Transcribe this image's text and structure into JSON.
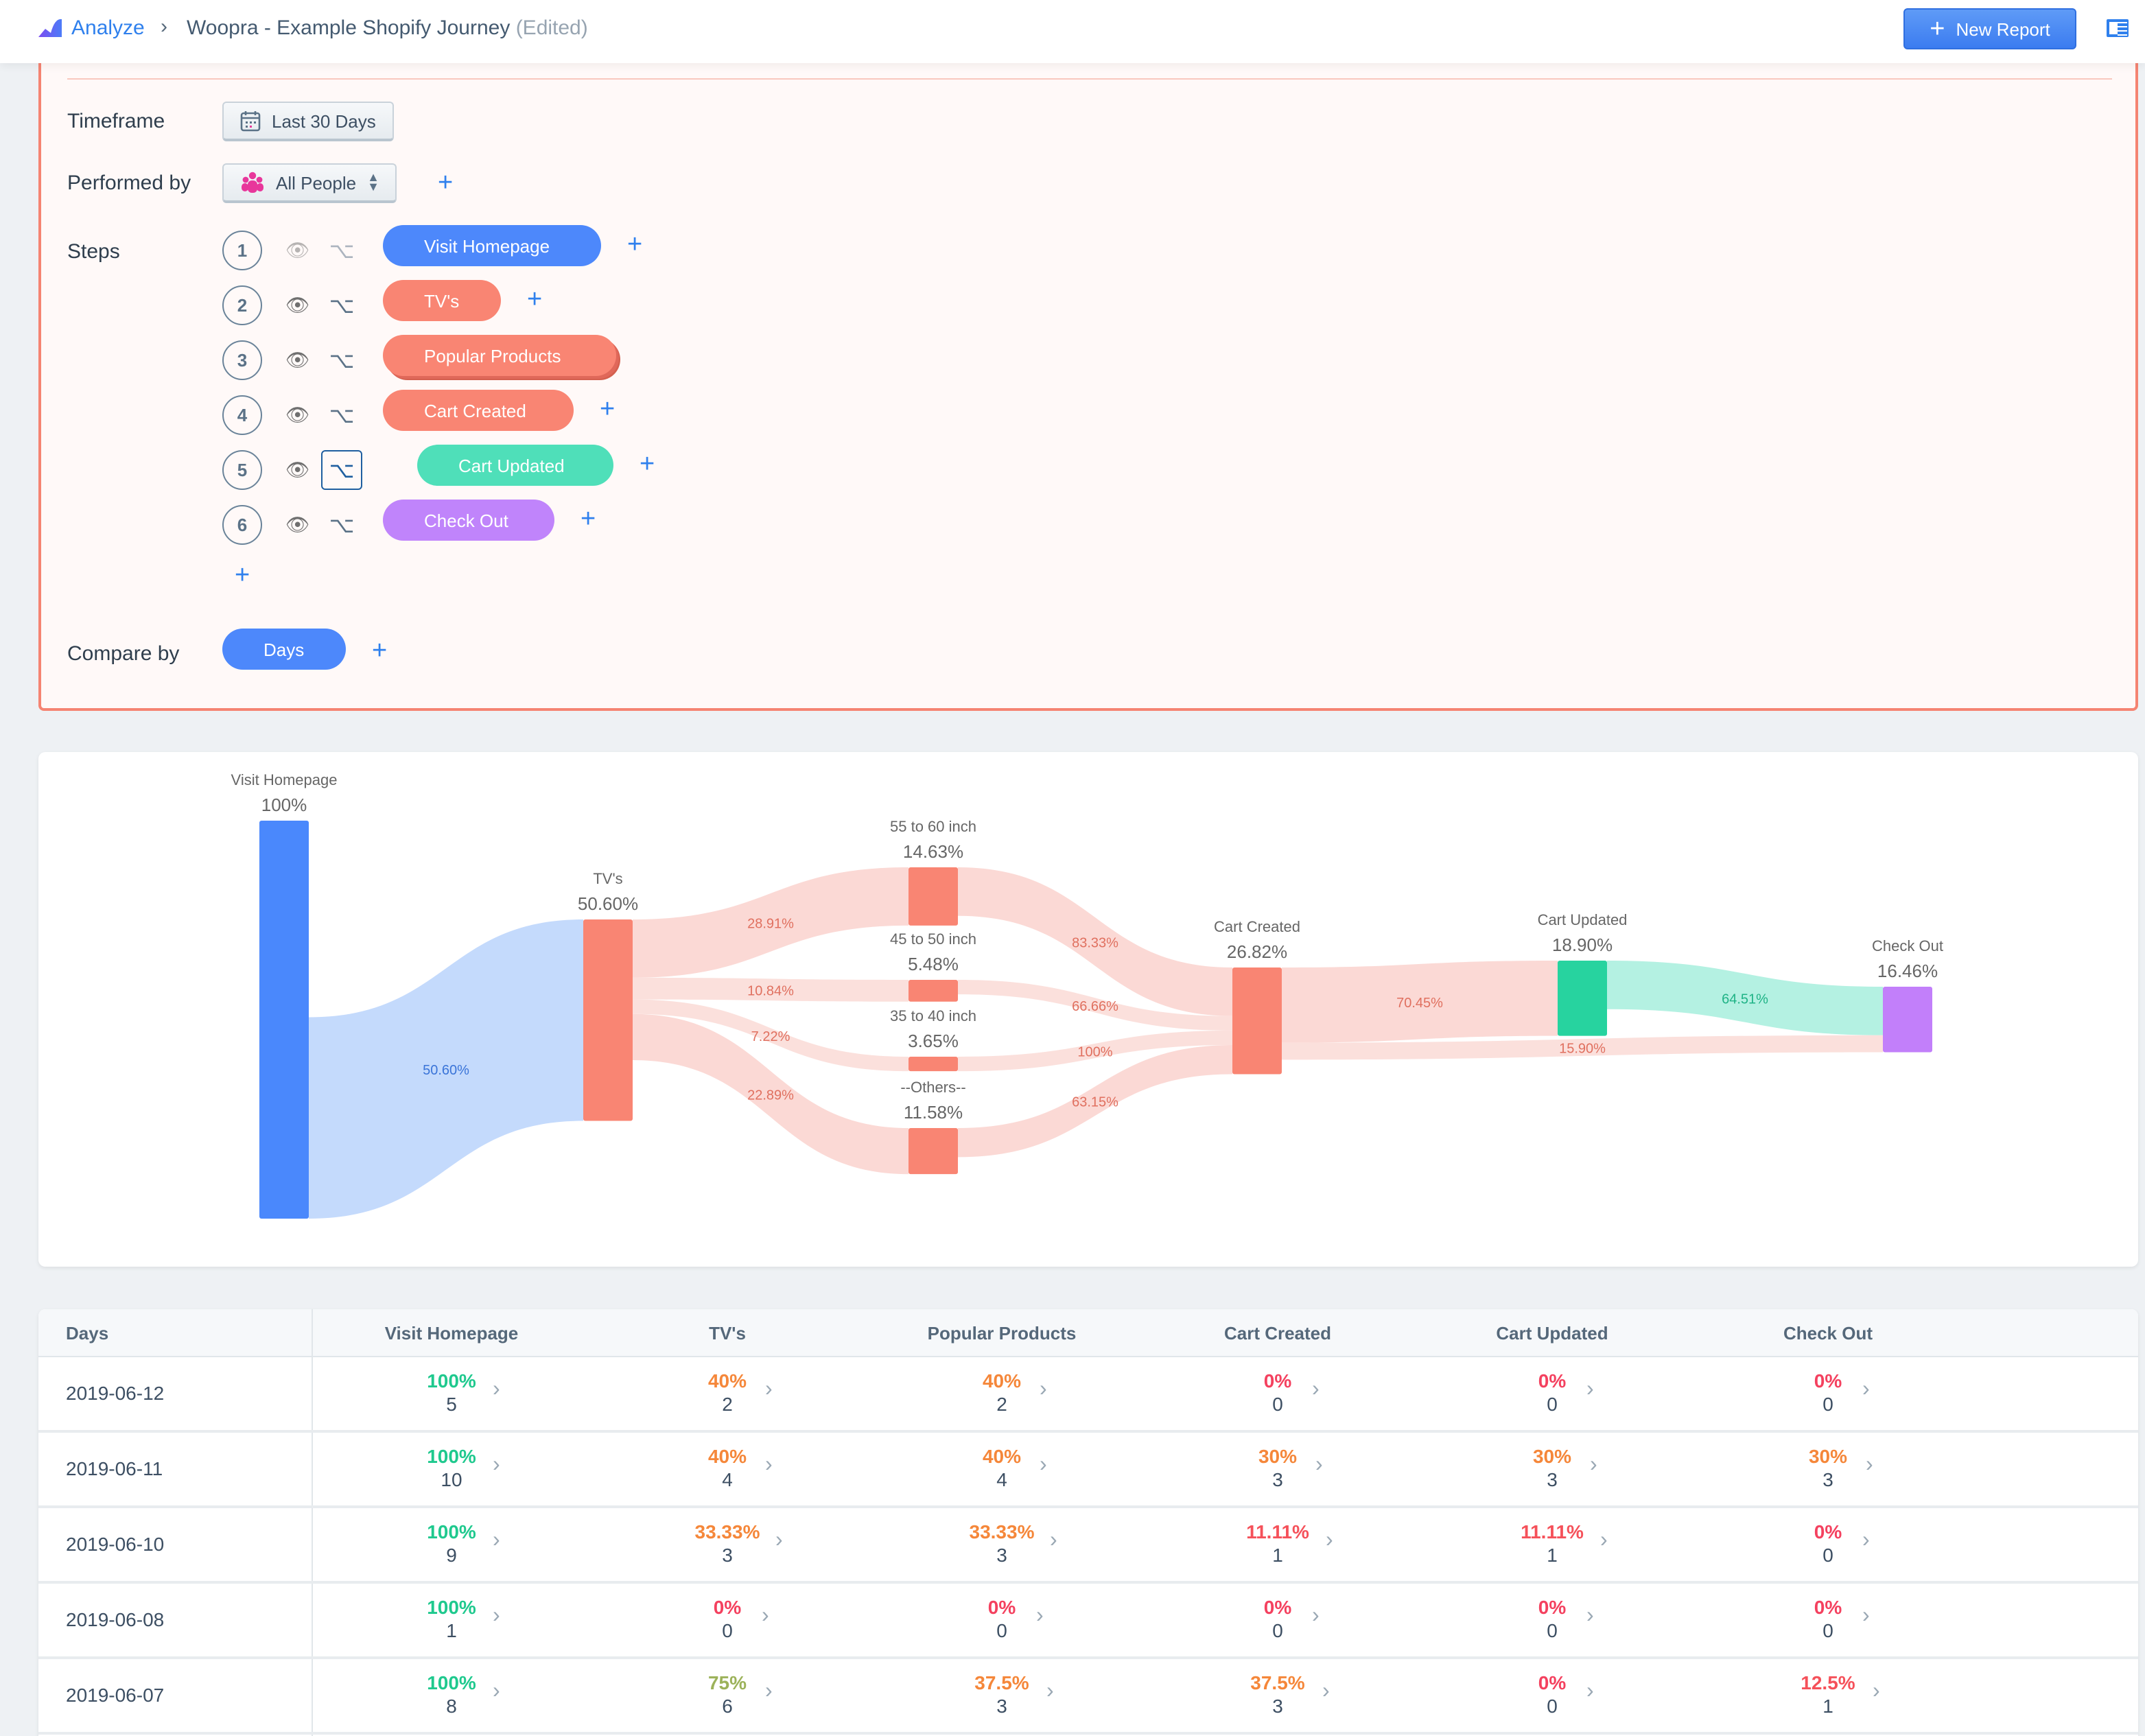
{
  "header": {
    "breadcrumb_root": "Analyze",
    "report_title": "Woopra - Example Shopify Journey",
    "edited_suffix": "(Edited)",
    "new_report_label": "New Report"
  },
  "filters": {
    "timeframe_label": "Timeframe",
    "timeframe_value": "Last 30 Days",
    "performed_by_label": "Performed by",
    "performed_by_value": "All People",
    "steps_label": "Steps",
    "steps": [
      {
        "number": "1",
        "label": "Visit Homepage",
        "color": "#4d88fb"
      },
      {
        "number": "2",
        "label": "TV's",
        "color": "#f98573"
      },
      {
        "number": "3",
        "label": "Popular Products",
        "color": "#f98573"
      },
      {
        "number": "4",
        "label": "Cart Created",
        "color": "#f98573"
      },
      {
        "number": "5",
        "label": "Cart Updated",
        "color": "#4fdfb9"
      },
      {
        "number": "6",
        "label": "Check Out",
        "color": "#c084fb"
      }
    ],
    "compare_by_label": "Compare by",
    "compare_by_value": "Days"
  },
  "chart_data": {
    "type": "sankey",
    "nodes": [
      {
        "id": "vh",
        "name": "Visit Homepage",
        "value": 100,
        "label": "100%",
        "color": "#4a88fc"
      },
      {
        "id": "tv",
        "name": "TV's",
        "value": 50.6,
        "label": "50.60%",
        "color": "#f98573"
      },
      {
        "id": "p1",
        "name": "55 to 60 inch",
        "value": 14.63,
        "label": "14.63%",
        "color": "#f98573"
      },
      {
        "id": "p2",
        "name": "45 to 50 inch",
        "value": 5.48,
        "label": "5.48%",
        "color": "#f98573"
      },
      {
        "id": "p3",
        "name": "35 to 40 inch",
        "value": 3.65,
        "label": "3.65%",
        "color": "#f98573"
      },
      {
        "id": "p4",
        "name": "--Others--",
        "value": 11.58,
        "label": "11.58%",
        "color": "#f98573"
      },
      {
        "id": "cc",
        "name": "Cart Created",
        "value": 26.82,
        "label": "26.82%",
        "color": "#f98573"
      },
      {
        "id": "cu",
        "name": "Cart Updated",
        "value": 18.9,
        "label": "18.90%",
        "color": "#27d39f"
      },
      {
        "id": "co",
        "name": "Check Out",
        "value": 16.46,
        "label": "16.46%",
        "color": "#c27ffa"
      }
    ],
    "links": [
      {
        "source": "vh",
        "target": "tv",
        "value": 50.6,
        "label": "50.60%",
        "color": "#c4dafc",
        "text_color": "#3a74d8"
      },
      {
        "source": "tv",
        "target": "p1",
        "value": 14.63,
        "label": "28.91%",
        "color": "#fbd9d5",
        "text_color": "#e0705f"
      },
      {
        "source": "tv",
        "target": "p2",
        "value": 5.48,
        "label": "10.84%",
        "color": "#fbe0dc",
        "text_color": "#e0705f"
      },
      {
        "source": "tv",
        "target": "p3",
        "value": 3.65,
        "label": "7.22%",
        "color": "#fbe0dc",
        "text_color": "#e0705f"
      },
      {
        "source": "tv",
        "target": "p4",
        "value": 11.58,
        "label": "22.89%",
        "color": "#fbd9d5",
        "text_color": "#e0705f"
      },
      {
        "source": "p1",
        "target": "cc",
        "value": 12.19,
        "label": "83.33%",
        "color": "#fbd9d5",
        "text_color": "#e0705f"
      },
      {
        "source": "p2",
        "target": "cc",
        "value": 3.65,
        "label": "66.66%",
        "color": "#fbe0dc",
        "text_color": "#e0705f"
      },
      {
        "source": "p3",
        "target": "cc",
        "value": 3.65,
        "label": "100%",
        "color": "#fbe0dc",
        "text_color": "#e0705f"
      },
      {
        "source": "p4",
        "target": "cc",
        "value": 7.31,
        "label": "63.15%",
        "color": "#fbd9d5",
        "text_color": "#e0705f"
      },
      {
        "source": "cc",
        "target": "cu",
        "value": 18.9,
        "label": "70.45%",
        "color": "#fbd9d5",
        "text_color": "#e0705f"
      },
      {
        "source": "cu",
        "target": "co",
        "value": 12.19,
        "label": "64.51%",
        "color": "#b4f1e2",
        "text_color": "#1fb386"
      },
      {
        "source": "cc",
        "target": "co",
        "value": 4.27,
        "label": "15.90%",
        "color": "#fbe0dc",
        "text_color": "#e0705f"
      }
    ]
  },
  "table": {
    "columns": [
      "Days",
      "Visit Homepage",
      "TV's",
      "Popular Products",
      "Cart Created",
      "Cart Updated",
      "Check Out"
    ],
    "rows": [
      {
        "day": "2019-06-12",
        "cells": [
          {
            "pct": "100%",
            "count": "5",
            "color": "#1fc98e"
          },
          {
            "pct": "40%",
            "count": "2",
            "color": "#f5873a"
          },
          {
            "pct": "40%",
            "count": "2",
            "color": "#f5873a"
          },
          {
            "pct": "0%",
            "count": "0",
            "color": "#f4415f"
          },
          {
            "pct": "0%",
            "count": "0",
            "color": "#f4415f"
          },
          {
            "pct": "0%",
            "count": "0",
            "color": "#f4415f"
          }
        ]
      },
      {
        "day": "2019-06-11",
        "cells": [
          {
            "pct": "100%",
            "count": "10",
            "color": "#1fc98e"
          },
          {
            "pct": "40%",
            "count": "4",
            "color": "#f5873a"
          },
          {
            "pct": "40%",
            "count": "4",
            "color": "#f5873a"
          },
          {
            "pct": "30%",
            "count": "3",
            "color": "#f5873a"
          },
          {
            "pct": "30%",
            "count": "3",
            "color": "#f5873a"
          },
          {
            "pct": "30%",
            "count": "3",
            "color": "#f5873a"
          }
        ]
      },
      {
        "day": "2019-06-10",
        "cells": [
          {
            "pct": "100%",
            "count": "9",
            "color": "#1fc98e"
          },
          {
            "pct": "33.33%",
            "count": "3",
            "color": "#f5873a"
          },
          {
            "pct": "33.33%",
            "count": "3",
            "color": "#f5873a"
          },
          {
            "pct": "11.11%",
            "count": "1",
            "color": "#f5515a"
          },
          {
            "pct": "11.11%",
            "count": "1",
            "color": "#f5515a"
          },
          {
            "pct": "0%",
            "count": "0",
            "color": "#f4415f"
          }
        ]
      },
      {
        "day": "2019-06-08",
        "cells": [
          {
            "pct": "100%",
            "count": "1",
            "color": "#1fc98e"
          },
          {
            "pct": "0%",
            "count": "0",
            "color": "#f4415f"
          },
          {
            "pct": "0%",
            "count": "0",
            "color": "#f4415f"
          },
          {
            "pct": "0%",
            "count": "0",
            "color": "#f4415f"
          },
          {
            "pct": "0%",
            "count": "0",
            "color": "#f4415f"
          },
          {
            "pct": "0%",
            "count": "0",
            "color": "#f4415f"
          }
        ]
      },
      {
        "day": "2019-06-07",
        "cells": [
          {
            "pct": "100%",
            "count": "8",
            "color": "#1fc98e"
          },
          {
            "pct": "75%",
            "count": "6",
            "color": "#9cb25a"
          },
          {
            "pct": "37.5%",
            "count": "3",
            "color": "#f5873a"
          },
          {
            "pct": "37.5%",
            "count": "3",
            "color": "#f5873a"
          },
          {
            "pct": "0%",
            "count": "0",
            "color": "#f4415f"
          },
          {
            "pct": "12.5%",
            "count": "1",
            "color": "#f5515a"
          }
        ]
      }
    ]
  }
}
